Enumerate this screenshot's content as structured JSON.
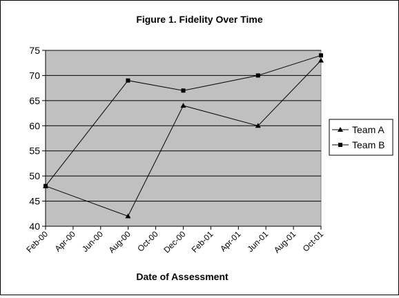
{
  "chart_data": {
    "type": "line",
    "title": "Figure 1. Fidelity Over Time",
    "xlabel": "Date of Assessment",
    "ylabel": "",
    "ylim": [
      40,
      75
    ],
    "yticks": [
      "40",
      "45",
      "50",
      "55",
      "60",
      "65",
      "70",
      "75"
    ],
    "xlim": [
      "2000-02-01",
      "2001-10-01"
    ],
    "xticks": [
      "Feb-00",
      "Apr-00",
      "Jun-00",
      "Aug-00",
      "Oct-00",
      "Dec-00",
      "Feb-01",
      "Apr-01",
      "Jun-01",
      "Aug-01",
      "Oct-01"
    ],
    "grid": true,
    "legend_position": "right",
    "colors": {
      "plot_bg": "#c0c0c0",
      "line": "#000000",
      "grid": "#000000"
    },
    "series": [
      {
        "name": "Team A",
        "marker": "triangle",
        "points": [
          {
            "x": "2000-02-01",
            "y": 48
          },
          {
            "x": "2000-08-01",
            "y": 42
          },
          {
            "x": "2000-12-01",
            "y": 64
          },
          {
            "x": "2001-05-15",
            "y": 60
          },
          {
            "x": "2001-10-01",
            "y": 73
          }
        ]
      },
      {
        "name": "Team B",
        "marker": "square",
        "points": [
          {
            "x": "2000-02-01",
            "y": 48
          },
          {
            "x": "2000-08-01",
            "y": 69
          },
          {
            "x": "2000-12-01",
            "y": 67
          },
          {
            "x": "2001-05-15",
            "y": 70
          },
          {
            "x": "2001-10-01",
            "y": 74
          }
        ]
      }
    ]
  }
}
